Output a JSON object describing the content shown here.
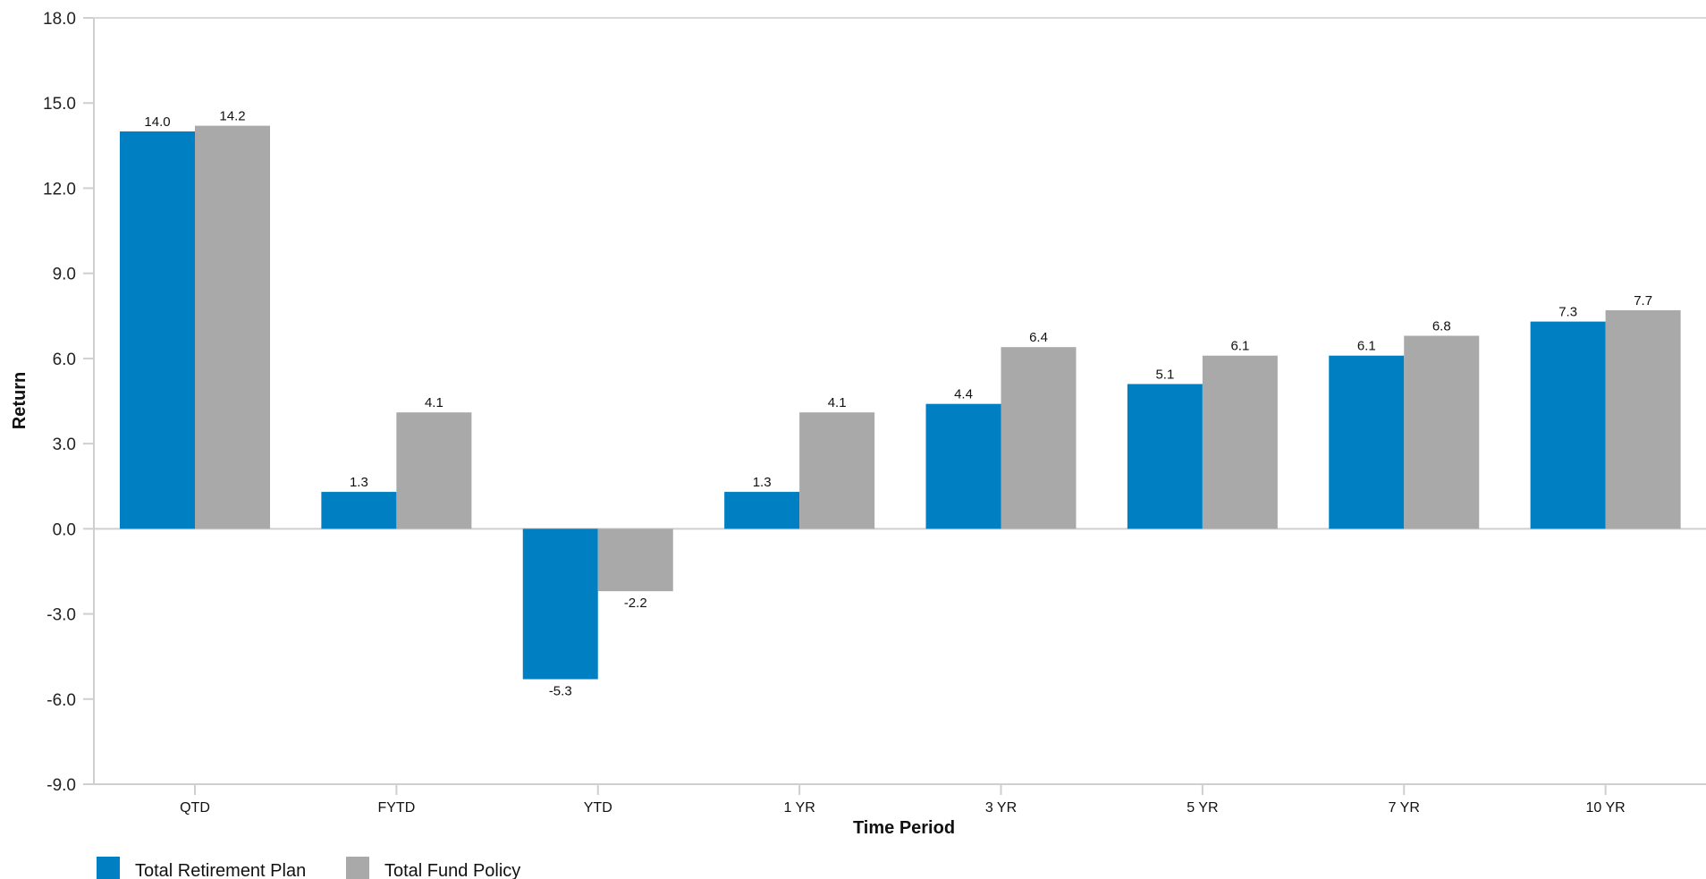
{
  "chart_data": {
    "type": "bar",
    "xlabel": "Time Period",
    "ylabel": "Return",
    "ylim": [
      -9,
      18
    ],
    "yticks": [
      "-9.0",
      "-6.0",
      "-3.0",
      "0.0",
      "3.0",
      "6.0",
      "9.0",
      "12.0",
      "15.0",
      "18.0"
    ],
    "categories": [
      "QTD",
      "FYTD",
      "YTD",
      "1 YR",
      "3 YR",
      "5 YR",
      "7 YR",
      "10 YR"
    ],
    "series": [
      {
        "name": "Total Retirement Plan",
        "color": "#0080c3",
        "values": [
          14.0,
          1.3,
          -5.3,
          1.3,
          4.4,
          5.1,
          6.1,
          7.3
        ],
        "labels": [
          "14.0",
          "1.3",
          "-5.3",
          "1.3",
          "4.4",
          "5.1",
          "6.1",
          "7.3"
        ]
      },
      {
        "name": "Total Fund Policy",
        "color": "#a9a9a9",
        "values": [
          14.2,
          4.1,
          -2.2,
          4.1,
          6.4,
          6.1,
          6.8,
          7.7
        ],
        "labels": [
          "14.2",
          "4.1",
          "-2.2",
          "4.1",
          "6.4",
          "6.1",
          "6.8",
          "7.7"
        ]
      }
    ],
    "grid": false,
    "legend_position": "bottom-left"
  }
}
